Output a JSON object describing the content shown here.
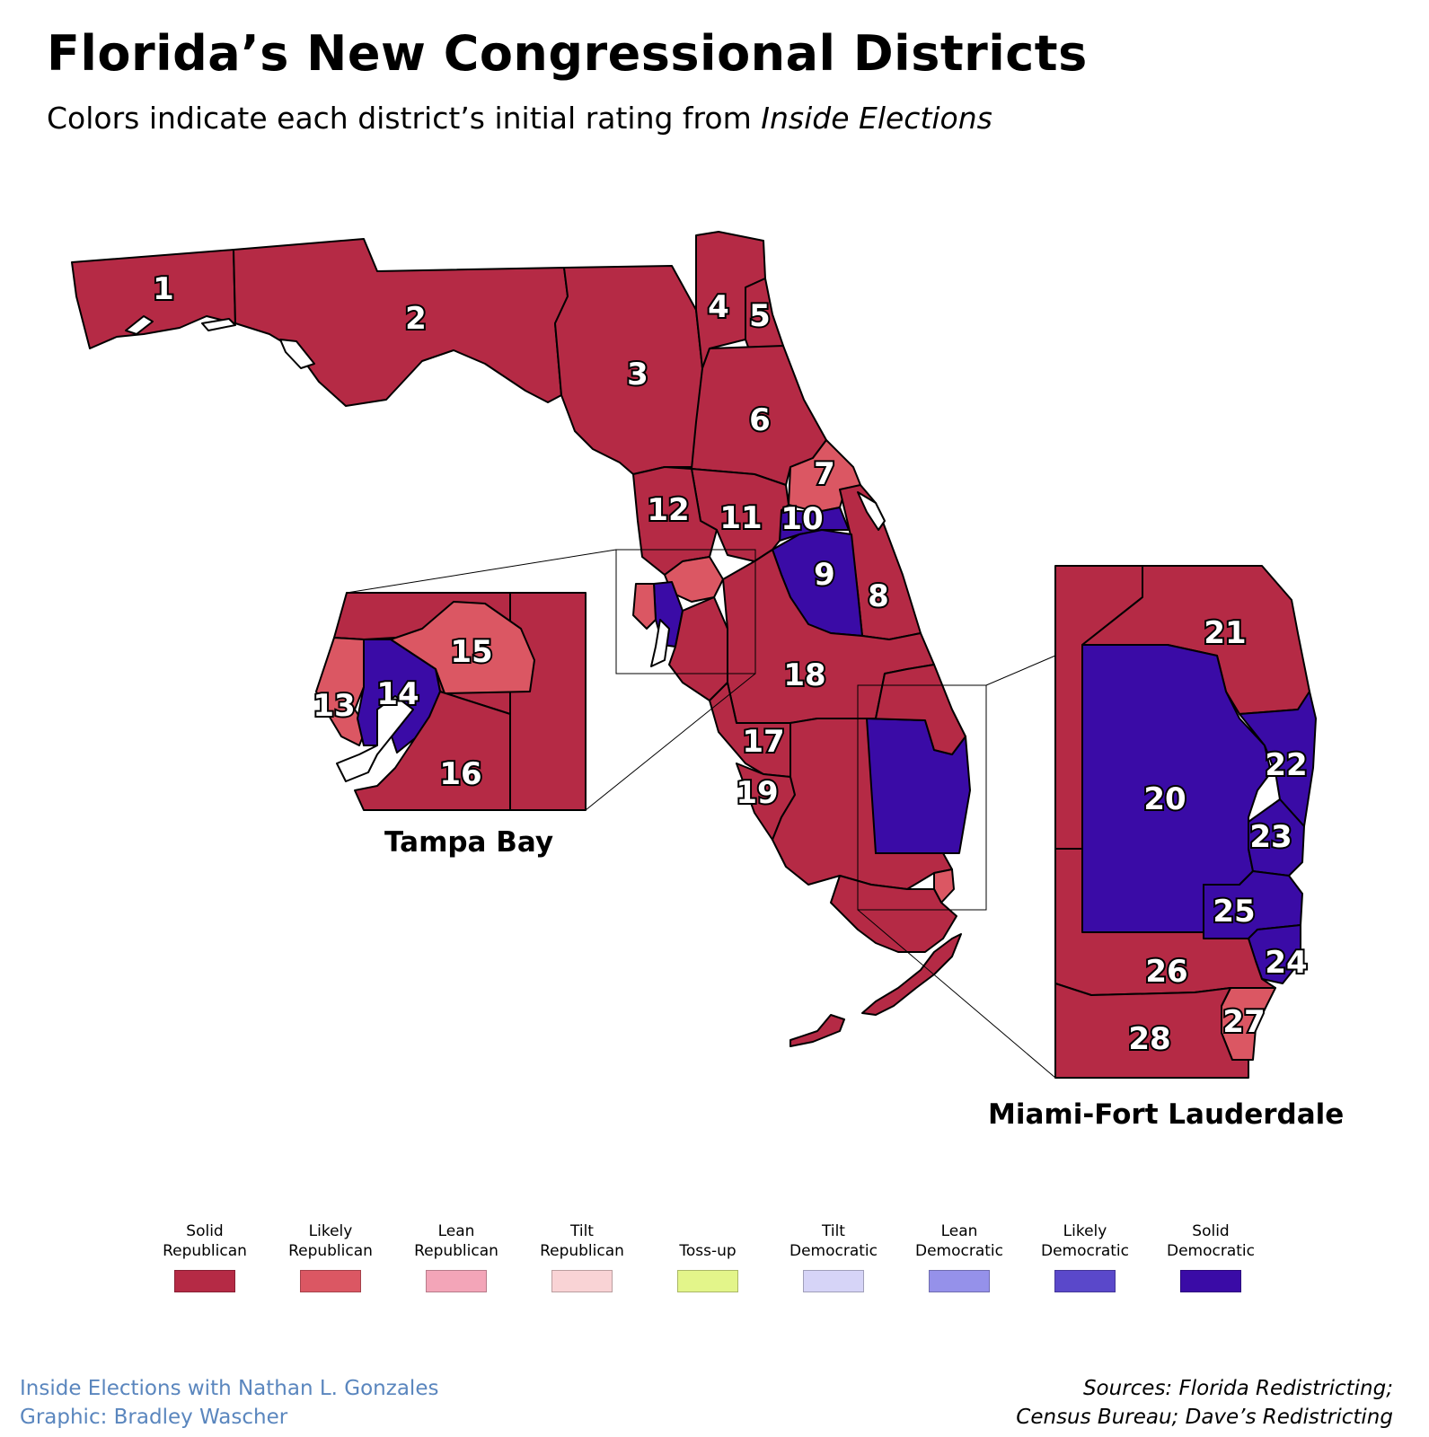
{
  "title": "Florida’s New Congressional Districts",
  "subtitle_prefix": "Colors indicate each district’s initial rating from ",
  "subtitle_em": "Inside Elections",
  "colors": {
    "solid_r": "#b52a45",
    "likely_r": "#db5763",
    "lean_r": "#f3a5b8",
    "tilt_r": "#f9d3d5",
    "tossup": "#e3f58a",
    "tilt_d": "#d6d4f7",
    "lean_d": "#9591ea",
    "likely_d": "#5a48ca",
    "solid_d": "#3a0ba6"
  },
  "legend": [
    {
      "line1": "Solid",
      "line2": "Republican",
      "color": "#b52a45"
    },
    {
      "line1": "Likely",
      "line2": "Republican",
      "color": "#db5763"
    },
    {
      "line1": "Lean",
      "line2": "Republican",
      "color": "#f3a5b8"
    },
    {
      "line1": "Tilt",
      "line2": "Republican",
      "color": "#f9d3d5"
    },
    {
      "line1": "",
      "line2": "Toss-up",
      "color": "#e3f58a"
    },
    {
      "line1": "Tilt",
      "line2": "Democratic",
      "color": "#d6d4f7"
    },
    {
      "line1": "Lean",
      "line2": "Democratic",
      "color": "#9591ea"
    },
    {
      "line1": "Likely",
      "line2": "Democratic",
      "color": "#5a48ca"
    },
    {
      "line1": "Solid",
      "line2": "Democratic",
      "color": "#3a0ba6"
    }
  ],
  "districts": {
    "d1": "1",
    "d2": "2",
    "d3": "3",
    "d4": "4",
    "d5": "5",
    "d6": "6",
    "d7": "7",
    "d8": "8",
    "d9": "9",
    "d10": "10",
    "d11": "11",
    "d12": "12",
    "d13": "13",
    "d14": "14",
    "d15": "15",
    "d16": "16",
    "d17": "17",
    "d18": "18",
    "d19": "19",
    "d20": "20",
    "d21": "21",
    "d22": "22",
    "d23": "23",
    "d24": "24",
    "d25": "25",
    "d26": "26",
    "d27": "27",
    "d28": "28"
  },
  "insets": {
    "tampa": "Tampa Bay",
    "miami": "Miami-Fort Lauderdale"
  },
  "credit_line1": "Inside Elections with Nathan L. Gonzales",
  "credit_line2": "Graphic: Bradley Wascher",
  "sources_line1": "Sources: Florida Redistricting;",
  "sources_line2": "Census Bureau; Dave’s Redistricting"
}
